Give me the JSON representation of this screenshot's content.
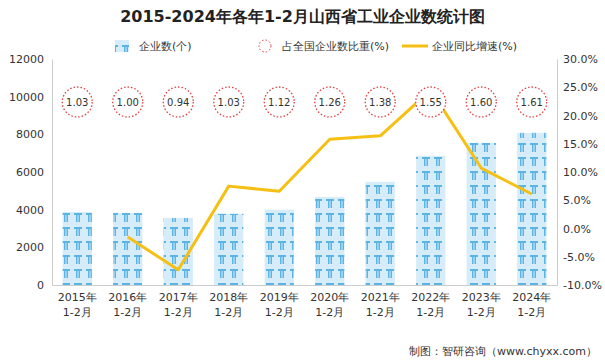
{
  "chart_data": {
    "type": "bar",
    "title": "2015-2024年各年1-2月山西省工业企业数统计图",
    "categories": [
      "2015年1-2月",
      "2016年1-2月",
      "2017年1-2月",
      "2018年1-2月",
      "2019年1-2月",
      "2020年1-2月",
      "2021年1-2月",
      "2022年1-2月",
      "2023年1-2月",
      "2024年1-2月"
    ],
    "series": [
      {
        "name": "企业数(个)",
        "type": "bar",
        "color": "#5ab4e6",
        "values": [
          3880,
          3830,
          3560,
          3780,
          4000,
          4680,
          5480,
          6860,
          7550,
          8080
        ]
      },
      {
        "name": "占全国企业数比重(%)",
        "type": "annotation",
        "color": "#e03c3c",
        "marker": "circle",
        "line_style": "dotted",
        "data_labels": true,
        "values": [
          1.03,
          1.0,
          0.94,
          1.03,
          1.12,
          1.26,
          1.38,
          1.55,
          1.6,
          1.61
        ],
        "value_labels": [
          "1.03",
          "1.00",
          "0.94",
          "1.03",
          "1.12",
          "1.26",
          "1.38",
          "1.55",
          "1.60",
          "1.61"
        ]
      },
      {
        "name": "企业同比增速(%)",
        "type": "line",
        "axis": "y2",
        "color": "#f5c013",
        "values": [
          null,
          -1.5,
          -7.3,
          7.5,
          6.6,
          15.8,
          16.4,
          24.5,
          10.7,
          6.1
        ]
      }
    ],
    "ylim": [
      0,
      12000
    ],
    "yticks": [
      0,
      2000,
      4000,
      6000,
      8000,
      10000,
      12000
    ],
    "y2lim": [
      -10,
      30
    ],
    "y2ticks": [
      {
        "value": -10,
        "label": "-10.0%"
      },
      {
        "value": -5,
        "label": "-5.0%"
      },
      {
        "value": 0,
        "label": "0.0%"
      },
      {
        "value": 5,
        "label": "5.0%"
      },
      {
        "value": 10,
        "label": "10.0%"
      },
      {
        "value": 15,
        "label": "15.0%"
      },
      {
        "value": 20,
        "label": "20.0%"
      },
      {
        "value": 25,
        "label": "25.0%"
      },
      {
        "value": 30,
        "label": "30.0%"
      }
    ],
    "grid": false,
    "legend": "top",
    "annotations": [
      "制图：智研咨询（www.chyxx.com）"
    ]
  }
}
